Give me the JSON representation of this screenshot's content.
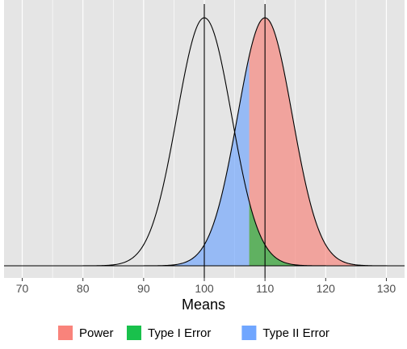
{
  "chart_data": {
    "type": "area",
    "title": "",
    "xlabel": "Means",
    "ylabel": "",
    "xlim": [
      67,
      133
    ],
    "xticks": [
      70,
      80,
      90,
      100,
      110,
      120,
      130
    ],
    "grid": true,
    "legend_position": "bottom",
    "null_distribution": {
      "mean": 100,
      "sd": 4.5
    },
    "alternative_distribution": {
      "mean": 110,
      "sd": 4.5
    },
    "critical_value": 107.4,
    "reference_lines": [
      100,
      110
    ],
    "series": [
      {
        "name": "Power",
        "color": "#F8766D",
        "region": "alternative distribution above critical value"
      },
      {
        "name": "Type I Error",
        "color": "#00BA38",
        "region": "null distribution above critical value"
      },
      {
        "name": "Type II Error",
        "color": "#619CFF",
        "region": "alternative distribution below critical value"
      }
    ],
    "fill_opacity": 0.6,
    "panel_background": "#E5E5E5",
    "grid_color": "#FFFFFF"
  }
}
